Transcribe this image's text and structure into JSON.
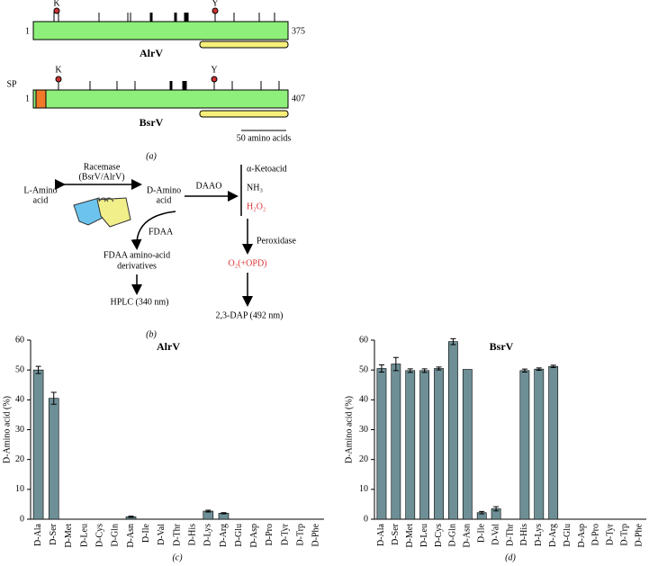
{
  "diagram_a": {
    "alr_name": "AlrV",
    "alr_start": "1",
    "alr_end": "375",
    "alr_k": "K",
    "alr_y": "Y",
    "bsr_name": "BsrV",
    "bsr_start": "1",
    "bsr_end": "407",
    "bsr_k": "K",
    "bsr_y": "Y",
    "bsr_sp": "SP",
    "scale": "50 amino acids",
    "caption": "(a)"
  },
  "diagram_b": {
    "racemase_1": "Racemase",
    "racemase_2": "(BsrV/AlrV)",
    "l_amino_1": "L-Amino",
    "l_amino_2": "acid",
    "d_amino_1": "D-Amino",
    "d_amino_2": "acid",
    "daao": "DAAO",
    "ketoacid": "α-Ketoacid",
    "nh3": "NH₃",
    "h2o2": "H₂O₂",
    "fdaa": "FDAA",
    "deriv_1": "FDAA amino-acid",
    "deriv_2": "derivatives",
    "peroxidase": "Peroxidase",
    "o2": "O₂(+OPD)",
    "hplc": "HPLC (340 nm)",
    "dap": "2,3-DAP (492 nm)",
    "caption": "(b)"
  },
  "chart_data": [
    {
      "type": "bar",
      "title": "AlrV",
      "xlabel": "(c)",
      "ylabel": "D-Amino acid (%)",
      "color": "#6e8f96",
      "categories": [
        "D-Ala",
        "D-Ser",
        "D-Met",
        "D-Leu",
        "D-Cys",
        "D-Gln",
        "D-Asn",
        "D-Ile",
        "D-Val",
        "D-Thr",
        "D-His",
        "D-Lys",
        "D-Arg",
        "D-Glu",
        "D-Asp",
        "D-Pro",
        "D-Tyr",
        "D-Trp",
        "D-Phe"
      ],
      "values": [
        50,
        40.5,
        0,
        0,
        0,
        0,
        0.8,
        0,
        0,
        0,
        0,
        2.7,
        2,
        0,
        0,
        0,
        0,
        0,
        0
      ],
      "errors": [
        1.2,
        2,
        0,
        0,
        0,
        0,
        0.2,
        0,
        0,
        0,
        0,
        0.3,
        0.2,
        0,
        0,
        0,
        0,
        0,
        0
      ],
      "ylim": [
        0,
        60
      ],
      "yticks": [
        0,
        10,
        20,
        30,
        40,
        50,
        60
      ]
    },
    {
      "type": "bar",
      "title": "BsrV",
      "xlabel": "(d)",
      "ylabel": "D-Amino acid (%)",
      "color": "#6e8f96",
      "categories": [
        "D-Ala",
        "D-Ser",
        "D-Met",
        "D-Leu",
        "D-Cys",
        "D-Gln",
        "D-Asn",
        "D-Ile",
        "D-Val",
        "D-Thr",
        "D-His",
        "D-Lys",
        "D-Arg",
        "D-Glu",
        "D-Asp",
        "D-Pro",
        "D-Tyr",
        "D-Trp",
        "D-Phe"
      ],
      "values": [
        50.5,
        52,
        49.8,
        49.8,
        50.5,
        59.5,
        50.2,
        2.2,
        3.5,
        0,
        49.8,
        50.3,
        51.2,
        0,
        0,
        0,
        0,
        0,
        0
      ],
      "errors": [
        1.2,
        2.2,
        0.6,
        0.6,
        0.5,
        1,
        0,
        0.4,
        0.7,
        0,
        0.5,
        0.4,
        0.4,
        0,
        0,
        0,
        0,
        0,
        0
      ],
      "ylim": [
        0,
        60
      ],
      "yticks": [
        0,
        10,
        20,
        30,
        40,
        50,
        60
      ]
    }
  ]
}
